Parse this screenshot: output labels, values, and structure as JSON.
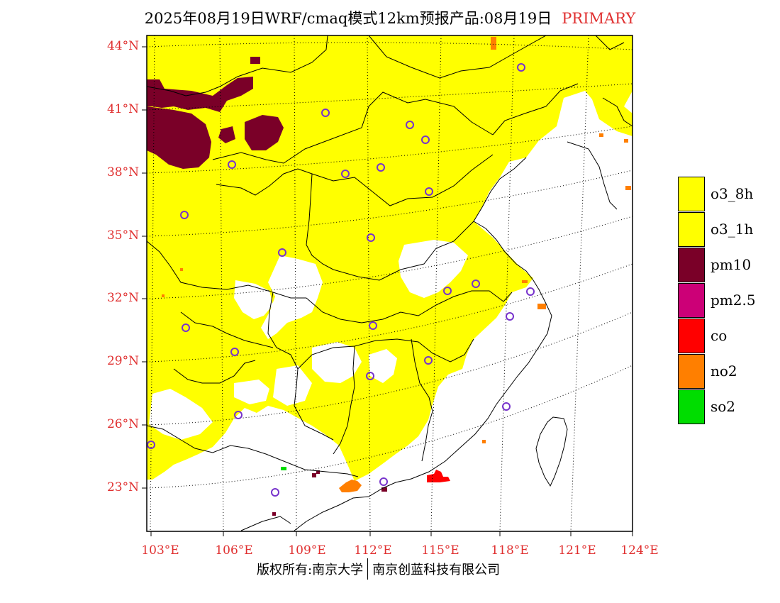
{
  "title": {
    "text": "2025年08月19日WRF/cmaq模式12km预报产品:08月19日",
    "tag": "PRIMARY"
  },
  "axes": {
    "lat_labels": [
      "44°N",
      "41°N",
      "38°N",
      "35°N",
      "32°N",
      "29°N",
      "26°N",
      "23°N"
    ],
    "lon_labels": [
      "103°E",
      "106°E",
      "109°E",
      "112°E",
      "115°E",
      "118°E",
      "121°E",
      "124°E"
    ]
  },
  "legend": [
    {
      "label": "o3_8h",
      "color": "#ffff00"
    },
    {
      "label": "o3_1h",
      "color": "#ffff00"
    },
    {
      "label": "pm10",
      "color": "#7a0028"
    },
    {
      "label": "pm2.5",
      "color": "#cc0077"
    },
    {
      "label": "co",
      "color": "#ff0000"
    },
    {
      "label": "no2",
      "color": "#ff7f00"
    },
    {
      "label": "so2",
      "color": "#00dd00"
    }
  ],
  "footer": {
    "left": "版权所有:南京大学",
    "right": "南京创蓝科技有限公司"
  },
  "colors": {
    "o3": "#ffff00",
    "pm10": "#7a0028",
    "co": "#ff0000",
    "no2": "#ff7f00",
    "so2": "#00dd00",
    "station": "#7733cc",
    "axis_label": "#e03030"
  }
}
